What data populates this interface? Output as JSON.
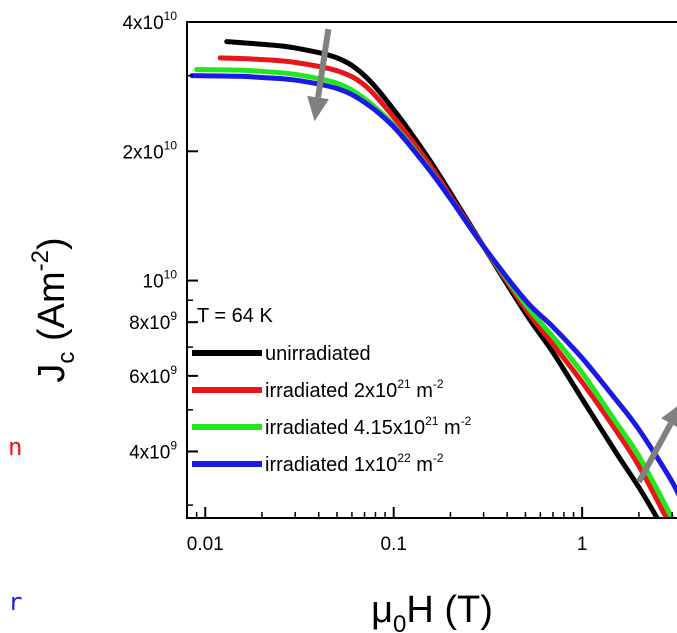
{
  "chart_data": {
    "type": "line",
    "x_scale": "log",
    "y_scale": "log",
    "xlim": [
      0.008,
      3.6
    ],
    "ylim": [
      2800000000.0,
      40000000000.0
    ],
    "xlabel": {
      "main": "μ",
      "sub": "0",
      "rest": "H (T)"
    },
    "ylabel": {
      "main": "J",
      "sub": "c",
      "rest": " (Am",
      "sup": "-2",
      "close": ")"
    },
    "x_ticks": [
      {
        "value": 0.01,
        "label": "0.01"
      },
      {
        "value": 0.1,
        "label": "0.1"
      },
      {
        "value": 1,
        "label": "1"
      }
    ],
    "y_ticks": [
      {
        "value": 4000000000.0,
        "mant": "4x10",
        "exp": "9"
      },
      {
        "value": 6000000000.0,
        "mant": "6x10",
        "exp": "9"
      },
      {
        "value": 8000000000.0,
        "mant": "8x10",
        "exp": "9"
      },
      {
        "value": 10000000000.0,
        "mant": "10",
        "exp": "10"
      },
      {
        "value": 20000000000.0,
        "mant": "2x10",
        "exp": "10"
      },
      {
        "value": 40000000000.0,
        "mant": "4x10",
        "exp": "10"
      }
    ],
    "annotation": "T = 64 K",
    "legend_position": "bottom-left",
    "series": [
      {
        "name": "unirradiated",
        "label_pre": "unirradiated",
        "label_sup": "",
        "label_post": "",
        "color": "#000000",
        "x": [
          0.013,
          0.02,
          0.03,
          0.05,
          0.07,
          0.1,
          0.15,
          0.2,
          0.3,
          0.5,
          0.7,
          1.0,
          1.5,
          2.0,
          2.5
        ],
        "y": [
          36000000000.0,
          35500000000.0,
          34800000000.0,
          33000000000.0,
          30000000000.0,
          25000000000.0,
          19500000000.0,
          16000000000.0,
          12000000000.0,
          8400000000.0,
          6800000000.0,
          5300000000.0,
          4000000000.0,
          3300000000.0,
          2800000000.0
        ]
      },
      {
        "name": "irradiated 2x10^21 m^-2",
        "label_pre": "irradiated 2x10",
        "label_sup": "21",
        "label_post": " m",
        "label_sup2": "-2",
        "color": "#e8161b",
        "x": [
          0.012,
          0.02,
          0.03,
          0.05,
          0.07,
          0.1,
          0.15,
          0.2,
          0.3,
          0.5,
          0.7,
          1.0,
          1.5,
          2.0,
          2.8
        ],
        "y": [
          33000000000.0,
          32700000000.0,
          32200000000.0,
          30800000000.0,
          28500000000.0,
          24000000000.0,
          19000000000.0,
          15700000000.0,
          12000000000.0,
          8600000000.0,
          7100000000.0,
          5800000000.0,
          4500000000.0,
          3700000000.0,
          2800000000.0
        ]
      },
      {
        "name": "irradiated 4.15x10^21 m^-2",
        "label_pre": "irradiated 4.15x10",
        "label_sup": "21",
        "label_post": " m",
        "label_sup2": "-2",
        "color": "#22e61e",
        "x": [
          0.009,
          0.015,
          0.02,
          0.03,
          0.05,
          0.07,
          0.1,
          0.15,
          0.2,
          0.3,
          0.5,
          0.7,
          1.0,
          1.5,
          2.0,
          3.0
        ],
        "y": [
          31000000000.0,
          30900000000.0,
          30700000000.0,
          30200000000.0,
          28800000000.0,
          26500000000.0,
          23000000000.0,
          18500000000.0,
          15500000000.0,
          12000000000.0,
          8800000000.0,
          7400000000.0,
          6100000000.0,
          4700000000.0,
          3900000000.0,
          2800000000.0
        ]
      },
      {
        "name": "irradiated 1x10^22 m^-2",
        "label_pre": "irradiated 1x10",
        "label_sup": "22",
        "label_post": " m",
        "label_sup2": "-2",
        "color": "#1a1ae6",
        "x": [
          0.0085,
          0.015,
          0.02,
          0.03,
          0.05,
          0.07,
          0.1,
          0.15,
          0.2,
          0.3,
          0.5,
          0.7,
          1.0,
          1.5,
          2.0,
          3.0,
          3.5
        ],
        "y": [
          30000000000.0,
          29900000000.0,
          29700000000.0,
          29300000000.0,
          28000000000.0,
          26000000000.0,
          22800000000.0,
          18400000000.0,
          15500000000.0,
          12000000000.0,
          9000000000.0,
          7800000000.0,
          6600000000.0,
          5300000000.0,
          4500000000.0,
          3400000000.0,
          2950000000.0
        ]
      }
    ],
    "arrows": [
      {
        "from": [
          0.045,
          38500000000.0
        ],
        "to": [
          0.038,
          23500000000.0
        ],
        "color": "#808080"
      },
      {
        "from": [
          2.0,
          3400000000.0
        ],
        "to": [
          3.4,
          5200000000.0
        ],
        "color": "#808080"
      }
    ]
  },
  "side_fragments": [
    {
      "text": "n",
      "color": "#e8161b"
    },
    {
      "text": "r",
      "color": "#1a1ae6"
    }
  ]
}
